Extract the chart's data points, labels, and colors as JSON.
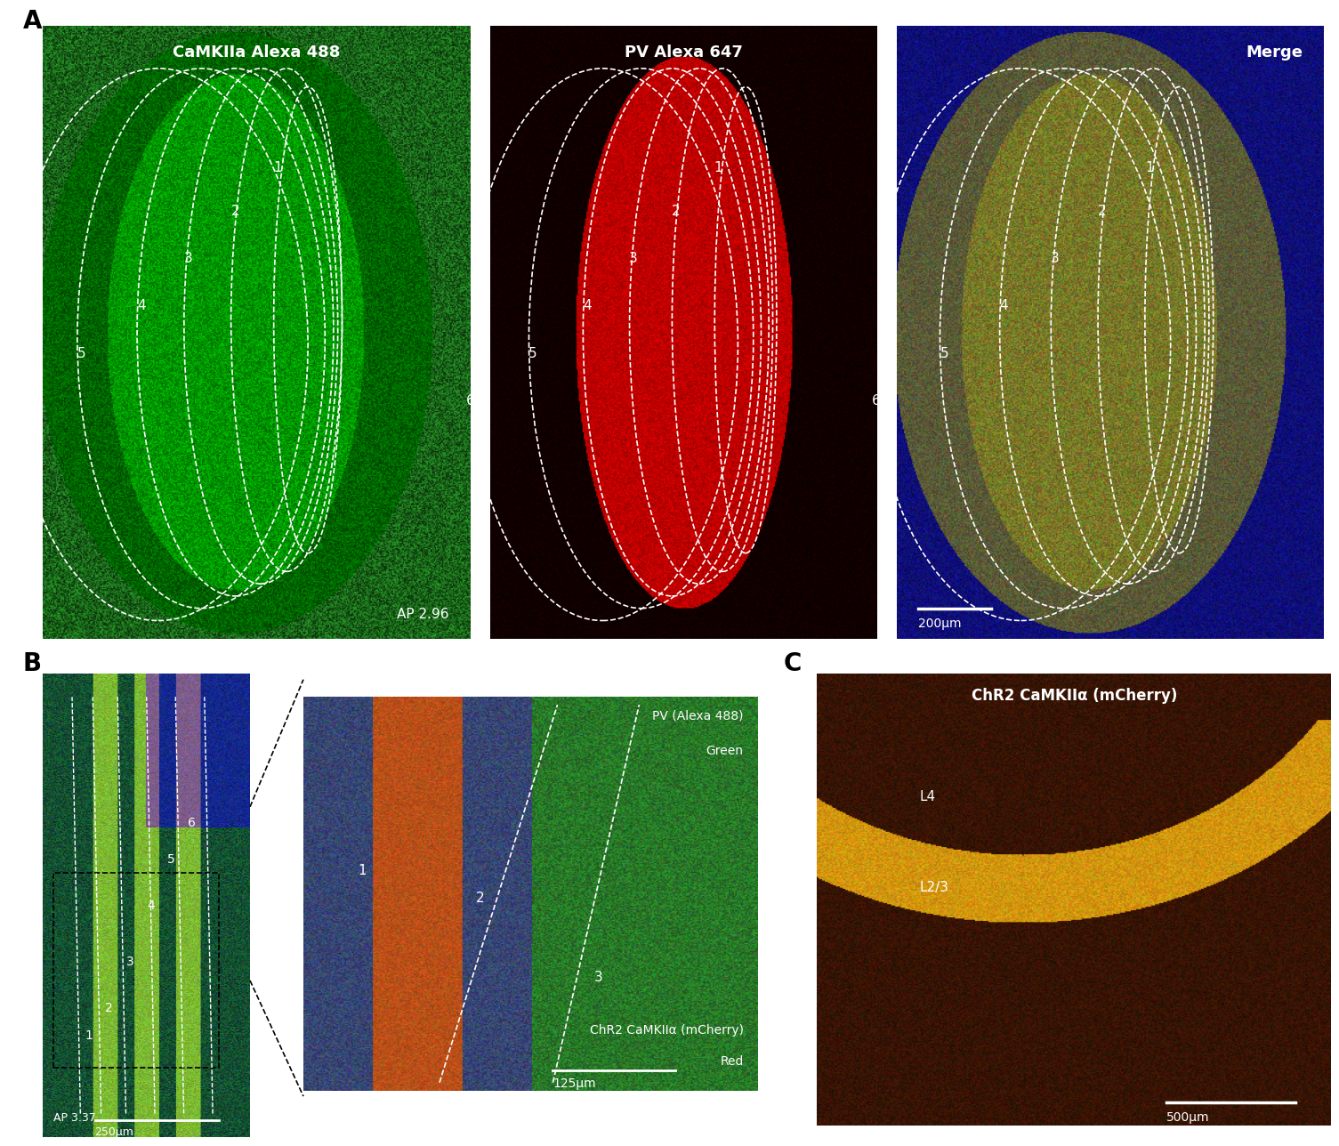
{
  "panel_A_label": "A",
  "panel_B_label": "B",
  "panel_C_label": "C",
  "panel_A1_title": "CaMKIIa Alexa 488",
  "panel_A2_title": "PV Alexa 647",
  "panel_A3_title": "Merge",
  "panel_B1_ap": "AP 3.37",
  "panel_B1_scale": "250μm",
  "panel_B2_title1": "PV (Alexa 488)",
  "panel_B2_title2": "Green",
  "panel_B2_title3": "ChR2 CaMKIIα (mCherry)",
  "panel_B2_title4": "Red",
  "panel_B2_scale": "125μm",
  "panel_C_title": "ChR2 CaMKIIα (mCherry)",
  "panel_C_scale": "500μm",
  "panel_A1_ap": "AP 2.96",
  "panel_A3_scale": "200μm",
  "layer_labels": [
    "1",
    "2",
    "3",
    "4",
    "5",
    "6"
  ],
  "background_color": "#ffffff",
  "panel_C_L23": "L2/3",
  "panel_C_L4": "L4"
}
